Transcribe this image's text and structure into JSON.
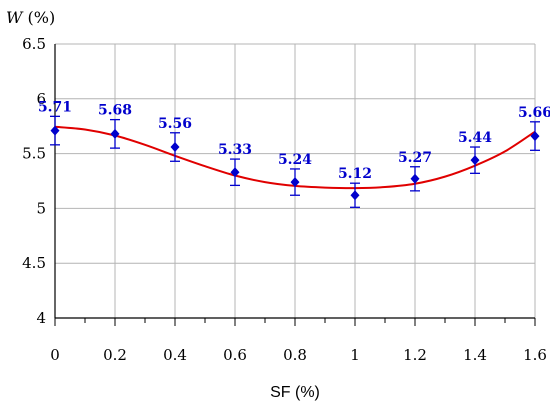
{
  "chart_data": {
    "type": "scatter",
    "xlabel": "SF (%)",
    "ylabel_var": "W",
    "ylabel_unit": " (%)",
    "xlim": [
      0,
      1.6
    ],
    "ylim": [
      4,
      6.5
    ],
    "xticks": [
      "0",
      "0.2",
      "0.4",
      "0.6",
      "0.8",
      "1",
      "1.2",
      "1.4",
      "1.6"
    ],
    "yticks": [
      "4",
      "4.5",
      "5",
      "5.5",
      "6",
      "6.5"
    ],
    "grid": true,
    "series": [
      {
        "x": [
          0,
          0.2,
          0.4,
          0.6,
          0.8,
          1.0,
          1.2,
          1.4,
          1.6
        ],
        "y": [
          5.71,
          5.68,
          5.56,
          5.33,
          5.24,
          5.12,
          5.27,
          5.44,
          5.66
        ],
        "labels": [
          "5.71",
          "5.68",
          "5.56",
          "5.33",
          "5.24",
          "5.12",
          "5.27",
          "5.44",
          "5.66"
        ],
        "error": [
          0.13,
          0.13,
          0.13,
          0.12,
          0.12,
          0.11,
          0.11,
          0.12,
          0.13
        ],
        "color": "#0000cc"
      }
    ],
    "fit_line": {
      "color": "#e00000",
      "x": [
        0,
        0.1,
        0.2,
        0.3,
        0.4,
        0.5,
        0.6,
        0.7,
        0.8,
        0.9,
        1.0,
        1.1,
        1.2,
        1.3,
        1.4,
        1.5,
        1.6
      ],
      "y": [
        5.745,
        5.72,
        5.665,
        5.58,
        5.48,
        5.385,
        5.3,
        5.24,
        5.205,
        5.19,
        5.185,
        5.195,
        5.225,
        5.29,
        5.39,
        5.52,
        5.7
      ]
    }
  }
}
